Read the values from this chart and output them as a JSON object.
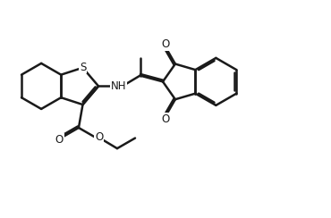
{
  "background_color": "#ffffff",
  "line_color": "#1a1a1a",
  "line_width": 1.8,
  "figsize": [
    3.7,
    2.44
  ],
  "dpi": 100,
  "xlim": [
    0,
    100
  ],
  "ylim": [
    0,
    66
  ]
}
